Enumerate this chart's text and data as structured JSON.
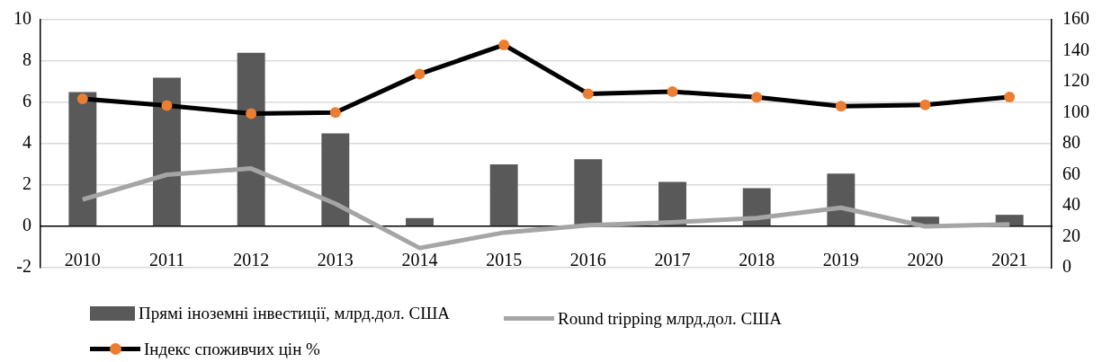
{
  "chart_data": {
    "type": "bar",
    "categories": [
      "2010",
      "2011",
      "2012",
      "2013",
      "2014",
      "2015",
      "2016",
      "2017",
      "2018",
      "2019",
      "2020",
      "2021"
    ],
    "series": [
      {
        "name": "Прямі іноземні інвестиції, млрд.дол. США",
        "color": "#595959",
        "values": [
          6.5,
          7.2,
          8.4,
          4.5,
          0.4,
          3.0,
          3.25,
          2.15,
          1.85,
          2.55,
          0.47,
          0.56
        ]
      },
      {
        "name": "Round tripping млрд.дол. США",
        "type": "line",
        "color": "#a5a5a5",
        "marker": "none",
        "values": [
          1.3,
          2.5,
          2.8,
          1.1,
          -1.05,
          -0.3,
          0.05,
          0.2,
          0.4,
          0.9,
          0.0,
          0.1
        ]
      },
      {
        "name": "Індекс споживчих цін %",
        "type": "line",
        "color": "#000000",
        "marker": "circle",
        "axis": "y2",
        "values": [
          109,
          104.7,
          99.4,
          100.1,
          125,
          143.8,
          112.2,
          113.6,
          110,
          104.2,
          105.1,
          110.2
        ]
      }
    ],
    "ylim": [
      -2,
      10
    ],
    "yticks": [
      -2,
      0,
      2,
      4,
      6,
      8,
      10
    ],
    "y2lim": [
      0,
      160
    ],
    "y2ticks": [
      0,
      20,
      40,
      60,
      80,
      100,
      120,
      140,
      160
    ],
    "grid": "y",
    "legend": "bottom"
  }
}
